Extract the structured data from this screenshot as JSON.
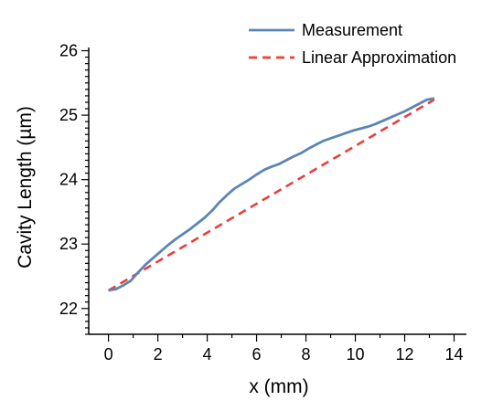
{
  "chart_data": {
    "type": "line",
    "xlabel": "x (mm)",
    "ylabel": "Cavity Length (µm)",
    "xlim": [
      -0.8,
      14.5
    ],
    "ylim": [
      21.6,
      26.05
    ],
    "x_ticks": [
      0,
      2,
      4,
      6,
      8,
      10,
      12,
      14
    ],
    "y_ticks": [
      22,
      23,
      24,
      25,
      26
    ],
    "x_tick_labels": [
      "0",
      "2",
      "4",
      "6",
      "8",
      "10",
      "12",
      "14"
    ],
    "y_tick_labels": [
      "22",
      "23",
      "24",
      "25",
      "26"
    ],
    "legend_position": "top-right",
    "grid": false,
    "series": [
      {
        "name": "Measurement",
        "style": "solid",
        "color": "#5b86b3",
        "x": [
          0,
          0.3,
          0.6,
          0.9,
          1.2,
          1.5,
          1.8,
          2.1,
          2.4,
          2.7,
          3.0,
          3.3,
          3.6,
          3.9,
          4.2,
          4.5,
          4.8,
          5.1,
          5.4,
          5.7,
          6.0,
          6.3,
          6.6,
          6.9,
          7.2,
          7.5,
          7.8,
          8.1,
          8.4,
          8.7,
          9.0,
          9.3,
          9.6,
          9.9,
          10.2,
          10.5,
          10.8,
          11.1,
          11.4,
          11.7,
          12.0,
          12.3,
          12.6,
          12.9,
          13.2
        ],
        "y": [
          22.28,
          22.3,
          22.36,
          22.43,
          22.56,
          22.68,
          22.78,
          22.88,
          22.98,
          23.07,
          23.15,
          23.23,
          23.32,
          23.41,
          23.52,
          23.65,
          23.76,
          23.86,
          23.93,
          24.0,
          24.08,
          24.15,
          24.2,
          24.24,
          24.3,
          24.36,
          24.41,
          24.48,
          24.54,
          24.6,
          24.64,
          24.68,
          24.72,
          24.76,
          24.79,
          24.82,
          24.86,
          24.91,
          24.96,
          25.01,
          25.06,
          25.12,
          25.18,
          25.24,
          25.26
        ]
      },
      {
        "name": "Linear Approximation",
        "style": "dashed",
        "color": "#e8403b",
        "x": [
          0,
          13.2
        ],
        "y": [
          22.28,
          25.24
        ]
      }
    ]
  }
}
